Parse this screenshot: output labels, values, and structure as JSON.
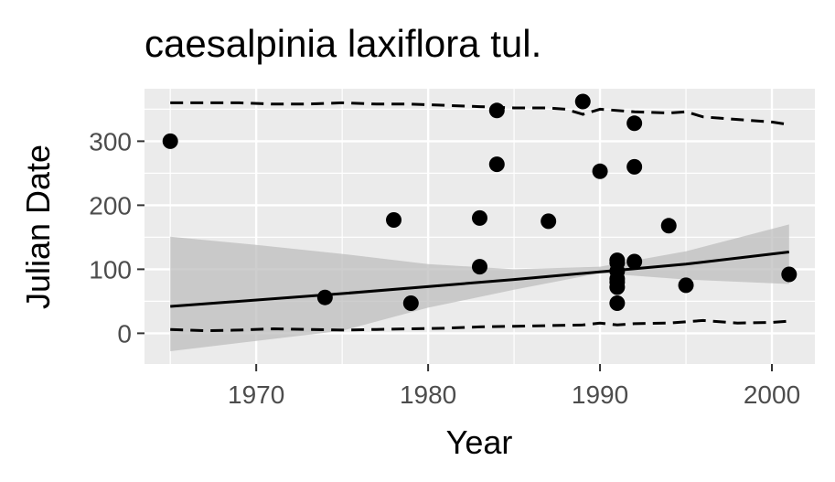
{
  "chart_data": {
    "type": "scatter",
    "title": "caesalpinia laxiflora tul.",
    "xlabel": "Year",
    "ylabel": "Julian Date",
    "xlim": [
      1963.5,
      2002.5
    ],
    "ylim": [
      -48,
      382
    ],
    "x_ticks": [
      1970,
      1980,
      1990,
      2000
    ],
    "y_ticks": [
      0,
      100,
      200,
      300
    ],
    "grid": true,
    "legend": "none",
    "colors": {
      "panel": "#ebebeb",
      "grid": "#ffffff",
      "points": "#000000",
      "ribbon": "#bdbdbd",
      "text": "#000000",
      "tick_text": "#4d4d4d"
    },
    "points": [
      {
        "x": 1965,
        "y": 300
      },
      {
        "x": 1974,
        "y": 56
      },
      {
        "x": 1978,
        "y": 177
      },
      {
        "x": 1979,
        "y": 47
      },
      {
        "x": 1983,
        "y": 180
      },
      {
        "x": 1983,
        "y": 104
      },
      {
        "x": 1984,
        "y": 348
      },
      {
        "x": 1984,
        "y": 264
      },
      {
        "x": 1987,
        "y": 175
      },
      {
        "x": 1989,
        "y": 362
      },
      {
        "x": 1990,
        "y": 253
      },
      {
        "x": 1991,
        "y": 114
      },
      {
        "x": 1991,
        "y": 110
      },
      {
        "x": 1991,
        "y": 97
      },
      {
        "x": 1991,
        "y": 85
      },
      {
        "x": 1991,
        "y": 80
      },
      {
        "x": 1991,
        "y": 72
      },
      {
        "x": 1991,
        "y": 47
      },
      {
        "x": 1992,
        "y": 328
      },
      {
        "x": 1992,
        "y": 260
      },
      {
        "x": 1992,
        "y": 112
      },
      {
        "x": 1994,
        "y": 168
      },
      {
        "x": 1995,
        "y": 75
      },
      {
        "x": 2001,
        "y": 92
      }
    ],
    "trend_line": {
      "x": [
        1965,
        1975,
        1985,
        1995,
        2001
      ],
      "y": [
        42,
        62,
        84,
        108,
        127
      ]
    },
    "confidence_band": {
      "x": [
        1965,
        1970,
        1975,
        1980,
        1985,
        1990,
        1995,
        2001
      ],
      "upper": [
        151,
        138,
        124,
        108,
        100,
        104,
        128,
        170
      ],
      "lower": [
        -28,
        -12,
        4,
        40,
        68,
        94,
        84,
        77
      ]
    },
    "upper_dashed": {
      "x": [
        1965,
        1967,
        1969,
        1971,
        1973,
        1975,
        1977,
        1979,
        1981,
        1983,
        1985,
        1987,
        1988,
        1989,
        1990,
        1992,
        1994,
        1995,
        1996,
        1998,
        2000,
        2001
      ],
      "y": [
        360,
        360,
        360,
        358,
        358,
        360,
        358,
        358,
        356,
        354,
        352,
        352,
        350,
        342,
        350,
        346,
        344,
        346,
        338,
        334,
        330,
        326
      ]
    },
    "lower_dashed": {
      "x": [
        1965,
        1967,
        1969,
        1971,
        1973,
        1975,
        1977,
        1979,
        1981,
        1983,
        1985,
        1987,
        1989,
        1990,
        1991,
        1992,
        1994,
        1995,
        1996,
        1998,
        2000,
        2001
      ],
      "y": [
        6,
        4,
        5,
        7,
        6,
        5,
        6,
        7,
        8,
        10,
        11,
        12,
        13,
        16,
        13,
        15,
        16,
        18,
        20,
        16,
        17,
        19
      ]
    }
  }
}
